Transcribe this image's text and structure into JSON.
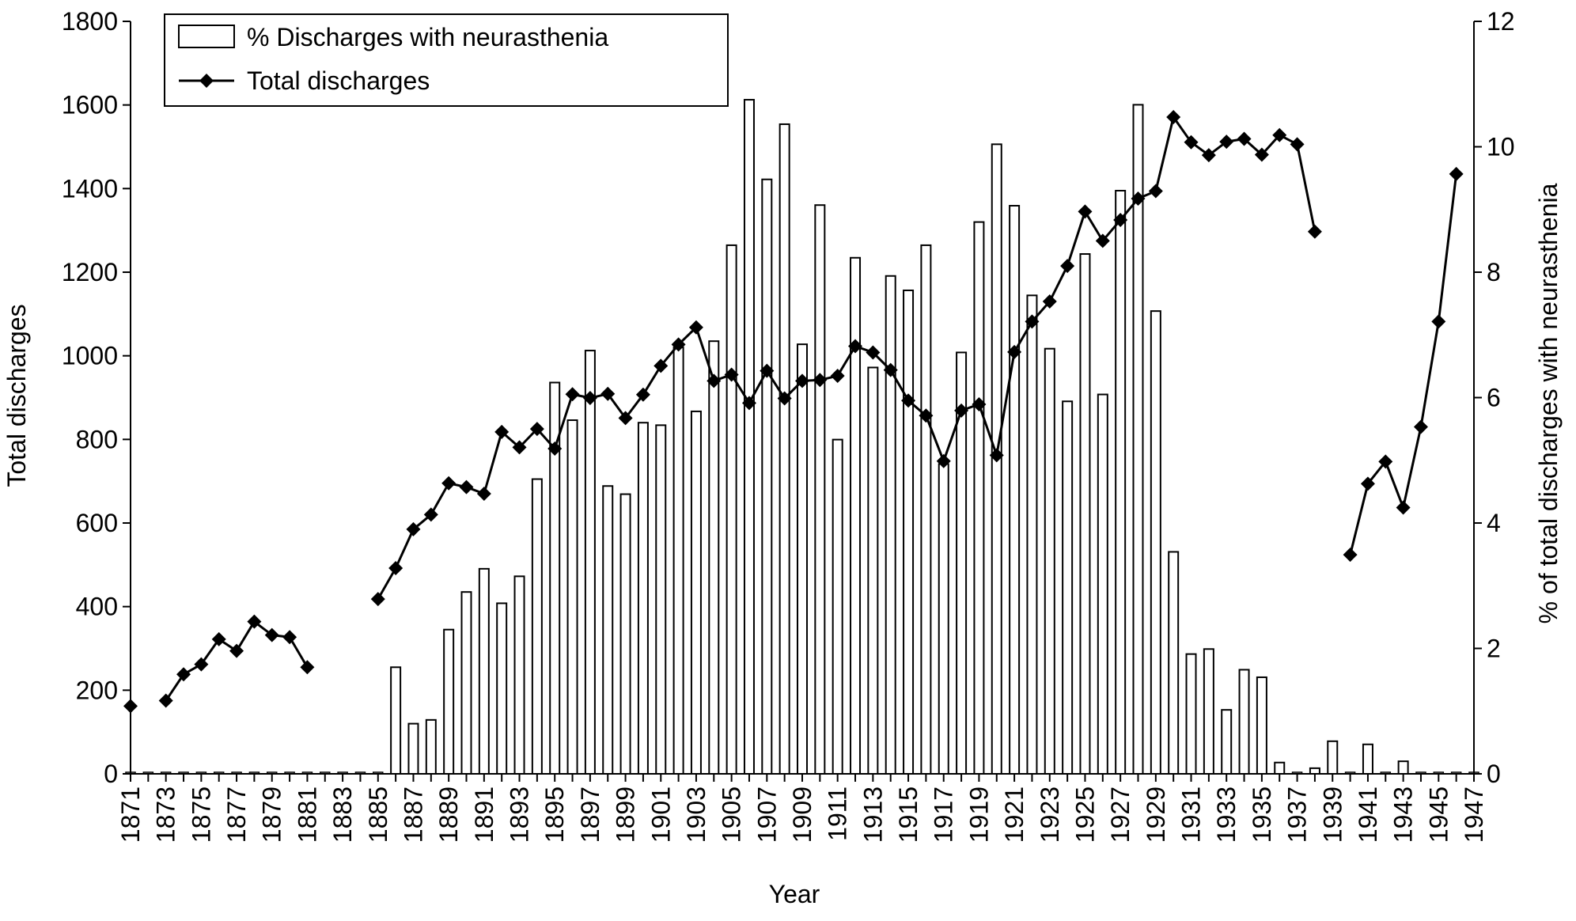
{
  "chart_data": {
    "type": "bar",
    "title": "",
    "xlabel": "Year",
    "ylabel": "Total discharges",
    "y2label": "% of total discharges with neurasthenia",
    "ylim": [
      0,
      1800
    ],
    "y2lim": [
      0,
      12
    ],
    "yticks": [
      0,
      200,
      400,
      600,
      800,
      1000,
      1200,
      1400,
      1600,
      1800
    ],
    "y2ticks": [
      0,
      2,
      4,
      6,
      8,
      10,
      12
    ],
    "x": [
      1871,
      1872,
      1873,
      1874,
      1875,
      1876,
      1877,
      1878,
      1879,
      1880,
      1881,
      1882,
      1883,
      1884,
      1885,
      1886,
      1887,
      1888,
      1889,
      1890,
      1891,
      1892,
      1893,
      1894,
      1895,
      1896,
      1897,
      1898,
      1899,
      1900,
      1901,
      1902,
      1903,
      1904,
      1905,
      1906,
      1907,
      1908,
      1909,
      1910,
      1911,
      1912,
      1913,
      1914,
      1915,
      1916,
      1917,
      1918,
      1919,
      1920,
      1921,
      1922,
      1923,
      1924,
      1925,
      1926,
      1927,
      1928,
      1929,
      1930,
      1931,
      1932,
      1933,
      1934,
      1935,
      1936,
      1937,
      1938,
      1939,
      1940,
      1941,
      1942,
      1943,
      1944,
      1945,
      1946,
      1947
    ],
    "xtick_labels": [
      "1871",
      "1873",
      "1875",
      "1877",
      "1879",
      "1881",
      "1883",
      "1885",
      "1887",
      "1889",
      "1891",
      "1893",
      "1895",
      "1897",
      "1899",
      "1901",
      "1903",
      "1905",
      "1907",
      "1909",
      "1911",
      "1913",
      "1915",
      "1917",
      "1919",
      "1921",
      "1923",
      "1925",
      "1927",
      "1929",
      "1931",
      "1933",
      "1935",
      "1937",
      "1939",
      "1941",
      "1943",
      "1945",
      "1947"
    ],
    "legend_position": "top-left",
    "series": [
      {
        "name": "% Discharges with neurasthenia",
        "type": "bar",
        "axis": "right",
        "values": [
          0,
          0,
          0,
          0,
          0,
          0,
          0,
          0,
          0,
          0,
          0,
          0,
          0,
          0,
          0,
          1.7,
          0.8,
          0.86,
          2.3,
          2.9,
          3.27,
          2.72,
          3.15,
          4.7,
          6.24,
          5.64,
          6.75,
          4.59,
          4.46,
          5.6,
          5.56,
          6.8,
          5.78,
          6.9,
          8.43,
          10.75,
          9.48,
          10.36,
          6.85,
          9.07,
          5.33,
          8.23,
          6.48,
          7.94,
          7.71,
          8.43,
          4.94,
          6.72,
          8.8,
          10.04,
          9.06,
          7.63,
          6.78,
          5.94,
          8.29,
          6.05,
          9.3,
          10.67,
          7.38,
          3.54,
          1.91,
          1.99,
          1.02,
          1.66,
          1.54,
          0.18,
          0,
          0.09,
          0.52,
          0,
          0.47,
          0,
          0.2,
          0,
          0,
          0,
          0
        ]
      },
      {
        "name": "Total discharges",
        "type": "line",
        "axis": "left",
        "values": [
          162,
          null,
          175,
          238,
          262,
          322,
          294,
          364,
          332,
          327,
          255,
          null,
          null,
          null,
          418,
          492,
          585,
          620,
          695,
          686,
          670,
          818,
          781,
          825,
          778,
          908,
          899,
          909,
          851,
          907,
          976,
          1027,
          1068,
          940,
          955,
          887,
          964,
          898,
          940,
          942,
          952,
          1023,
          1008,
          966,
          893,
          857,
          748,
          869,
          884,
          762,
          1009,
          1082,
          1130,
          1215,
          1345,
          1275,
          1325,
          1376,
          1394,
          1571,
          1511,
          1480,
          1512,
          1519,
          1481,
          1528,
          1506,
          1297,
          null,
          524,
          694,
          747,
          637,
          830,
          1082,
          1435,
          null
        ]
      }
    ]
  }
}
